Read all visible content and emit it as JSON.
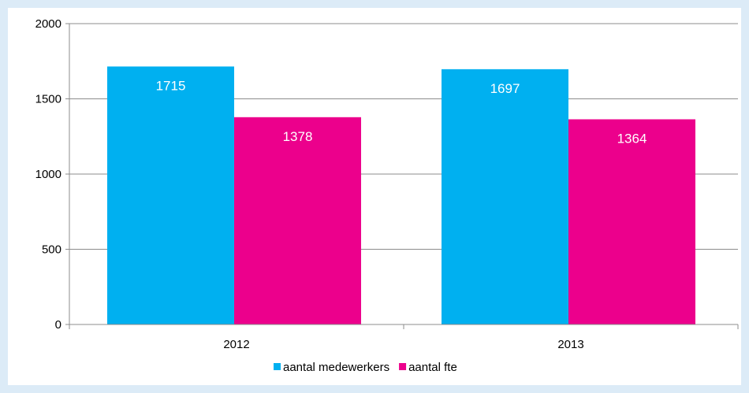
{
  "chart_data": {
    "type": "bar",
    "title": "",
    "xlabel": "",
    "ylabel": "",
    "categories": [
      "2012",
      "2013"
    ],
    "series": [
      {
        "name": "aantal medewerkers",
        "values": [
          1715,
          1697
        ],
        "color": "#00b0f0"
      },
      {
        "name": "aantal fte",
        "values": [
          1378,
          1364
        ],
        "color": "#ec008c"
      }
    ],
    "ylim": [
      0,
      2000
    ],
    "yticks": [
      0,
      500,
      1000,
      1500,
      2000
    ],
    "grid": true,
    "legend_position": "bottom"
  }
}
